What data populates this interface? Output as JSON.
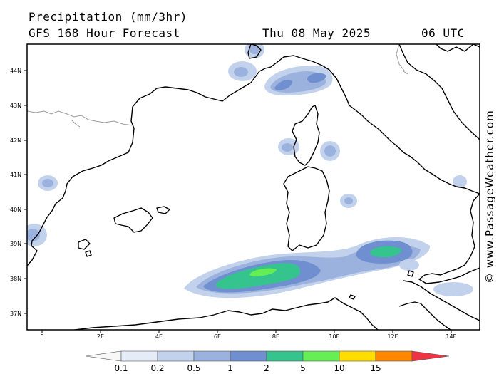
{
  "header": {
    "title": "Precipitation (mm/3hr)",
    "model": "GFS 168 Hour Forecast",
    "date": "Thu 08 May 2025",
    "time": "06 UTC"
  },
  "map": {
    "lat_labels": [
      "44N",
      "43N",
      "42N",
      "41N",
      "40N",
      "39N",
      "38N",
      "37N"
    ],
    "lon_labels": [
      "0",
      "2E",
      "4E",
      "6E",
      "8E",
      "10E",
      "12E",
      "14E"
    ],
    "coast_color": "#000000",
    "border_color": "#9a9a9a"
  },
  "scale": {
    "labels": [
      "0.1",
      "0.2",
      "0.5",
      "1",
      "2",
      "5",
      "10",
      "15"
    ],
    "colors": [
      "#e6ecf7",
      "#c3d2ec",
      "#9cb2de",
      "#6f8fd0",
      "#36c48e",
      "#66ee55",
      "#ffdd00",
      "#ff8800",
      "#ee3344"
    ]
  },
  "credit": "© www.PassageWeather.com"
}
